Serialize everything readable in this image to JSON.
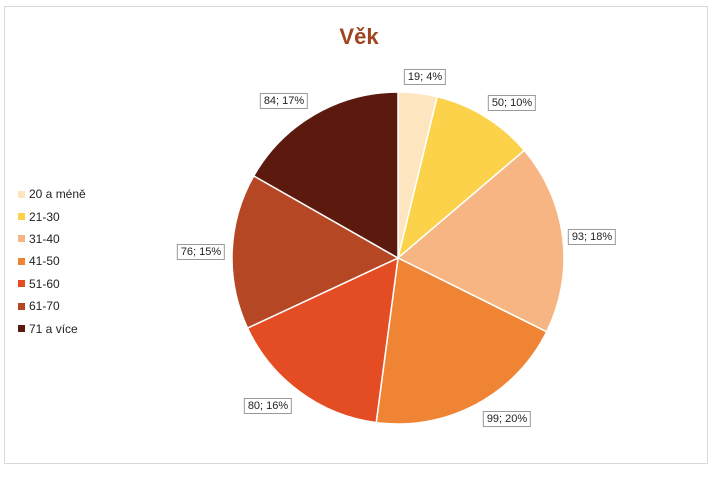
{
  "chart_data": {
    "type": "pie",
    "title": "Věk",
    "legend_position": "left",
    "categories": [
      "20 a méně",
      "21-30",
      "31-40",
      "41-50",
      "51-60",
      "61-70",
      "71 a více"
    ],
    "values": [
      19,
      50,
      93,
      99,
      80,
      76,
      84
    ],
    "percentages": [
      4,
      10,
      18,
      20,
      16,
      15,
      17
    ],
    "labels": [
      "19; 4%",
      "50; 10%",
      "93; 18%",
      "99; 20%",
      "80; 16%",
      "76; 15%",
      "84; 17%"
    ],
    "colors": [
      "#fde5c0",
      "#fcd24a",
      "#f7b583",
      "#ee8434",
      "#e44d24",
      "#b64725",
      "#5c1a0f"
    ]
  }
}
